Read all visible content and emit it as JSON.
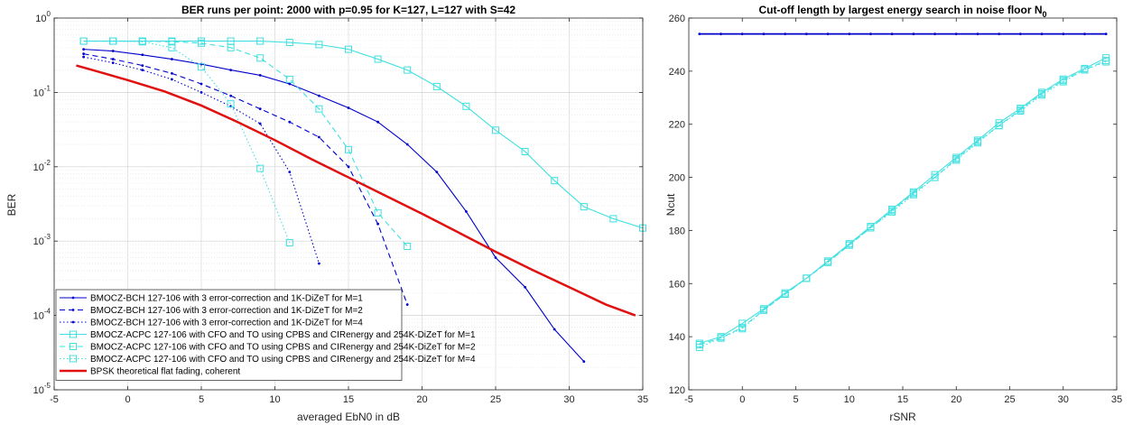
{
  "chart_data": [
    {
      "type": "line",
      "title": "BER runs per point: 2000 with p=0.95 for  K=127, L=127 with S=42",
      "xlabel": "averaged EbN0 in dB",
      "ylabel": "BER",
      "xlim": [
        -5,
        35
      ],
      "ylim": [
        1e-05,
        1
      ],
      "yscale": "log",
      "grid": true,
      "legend_position": "bottom-left",
      "xticks": [
        "-5",
        "0",
        "5",
        "10",
        "15",
        "20",
        "25",
        "30",
        "35"
      ],
      "yticks": [
        {
          "base": "10",
          "exp": "0"
        },
        {
          "base": "10",
          "exp": "-1"
        },
        {
          "base": "10",
          "exp": "-2"
        },
        {
          "base": "10",
          "exp": "-3"
        },
        {
          "base": "10",
          "exp": "-4"
        },
        {
          "base": "10",
          "exp": "-5"
        }
      ],
      "series": [
        {
          "name": "BMOCZ-BCH 127-106 with 3 error-correction and 1K-DiZeT for M=1",
          "color": "#0000cd",
          "dash": "solid",
          "marker": "dot",
          "x": [
            -3,
            -1,
            1,
            3,
            5,
            7,
            9,
            11,
            13,
            15,
            17,
            19,
            21,
            23,
            25,
            27,
            29,
            31
          ],
          "y": [
            0.38,
            0.36,
            0.32,
            0.28,
            0.24,
            0.2,
            0.17,
            0.13,
            0.09,
            0.062,
            0.04,
            0.02,
            0.0085,
            0.0025,
            0.0006,
            0.00024,
            6.5e-05,
            2.4e-05
          ]
        },
        {
          "name": "BMOCZ-BCH 127-106 with 3 error-correction and 1K-DiZeT for M=2",
          "color": "#0000cd",
          "dash": "dash",
          "marker": "dot",
          "x": [
            -3,
            -1,
            1,
            3,
            5,
            7,
            9,
            11,
            13,
            15,
            17,
            19
          ],
          "y": [
            0.33,
            0.28,
            0.23,
            0.18,
            0.13,
            0.09,
            0.06,
            0.04,
            0.025,
            0.01,
            0.0017,
            0.00014
          ]
        },
        {
          "name": "BMOCZ-BCH 127-106 with 3 error-correction and 1K-DiZeT for M=4",
          "color": "#0000cd",
          "dash": "dot",
          "marker": "dot",
          "x": [
            -3,
            -1,
            1,
            3,
            5,
            7,
            9,
            11,
            13
          ],
          "y": [
            0.3,
            0.25,
            0.2,
            0.15,
            0.1,
            0.065,
            0.038,
            0.0085,
            0.0005
          ]
        },
        {
          "name": "BMOCZ-ACPC 127-106 with CFO and TO using CPBS and CIRenergy and 254K-DiZeT for M=1",
          "color": "#40e0e0",
          "dash": "solid",
          "marker": "square",
          "x": [
            -3,
            -1,
            1,
            3,
            5,
            7,
            9,
            11,
            13,
            15,
            17,
            19,
            21,
            23,
            25,
            27,
            29,
            31,
            33,
            35
          ],
          "y": [
            0.49,
            0.49,
            0.49,
            0.49,
            0.49,
            0.49,
            0.49,
            0.47,
            0.44,
            0.38,
            0.28,
            0.2,
            0.12,
            0.065,
            0.031,
            0.016,
            0.0065,
            0.0029,
            0.002,
            0.0015
          ]
        },
        {
          "name": "BMOCZ-ACPC 127-106 with CFO and TO using CPBS and CIRenergy and 254K-DiZeT for M=2",
          "color": "#40e0e0",
          "dash": "dash",
          "marker": "square",
          "x": [
            -3,
            -1,
            1,
            3,
            5,
            7,
            9,
            11,
            13,
            15,
            17,
            19
          ],
          "y": [
            0.49,
            0.49,
            0.49,
            0.48,
            0.46,
            0.4,
            0.29,
            0.15,
            0.06,
            0.017,
            0.0024,
            0.00085
          ]
        },
        {
          "name": "BMOCZ-ACPC 127-106 with CFO and TO using CPBS and CIRenergy and 254K-DiZeT for M=4",
          "color": "#40e0e0",
          "dash": "dot",
          "marker": "square",
          "x": [
            -3,
            -1,
            1,
            3,
            5,
            7,
            9,
            11
          ],
          "y": [
            0.49,
            0.49,
            0.48,
            0.4,
            0.22,
            0.07,
            0.0095,
            0.00095
          ]
        },
        {
          "name": "BPSK theoretical flat fading, coherent",
          "color": "#e01010",
          "dash": "solid",
          "marker": "none",
          "width": 2.5,
          "x": [
            -3.5,
            -2,
            0,
            2.5,
            5,
            7.5,
            10,
            12.5,
            15,
            17.5,
            20,
            22.5,
            25,
            27.5,
            30,
            32.5,
            34.5
          ],
          "y": [
            0.23,
            0.19,
            0.146,
            0.103,
            0.0666,
            0.0397,
            0.0228,
            0.0126,
            0.0072,
            0.0041,
            0.00233,
            0.0013,
            0.00072,
            0.00041,
            0.00024,
            0.00014,
            0.0001
          ]
        }
      ]
    },
    {
      "type": "line",
      "title": "Cut-off length by largest energy search in noise floor N",
      "title_sub": "0",
      "xlabel": "rSNR",
      "ylabel": "Ncut",
      "xlim": [
        -5,
        35
      ],
      "ylim": [
        120,
        260
      ],
      "grid": false,
      "xticks": [
        "-5",
        "0",
        "5",
        "10",
        "15",
        "20",
        "25",
        "30",
        "35"
      ],
      "yticks": [
        "120",
        "140",
        "160",
        "180",
        "200",
        "220",
        "240",
        "260"
      ],
      "series": [
        {
          "color": "#0000cd",
          "dash": "solid",
          "marker": "dot",
          "width": 1.8,
          "x": [
            -4,
            -2,
            0,
            2,
            4,
            6,
            8,
            10,
            12,
            14,
            16,
            18,
            20,
            22,
            24,
            26,
            28,
            30,
            32,
            34
          ],
          "y": [
            254,
            254,
            254,
            254,
            254,
            254,
            254,
            254,
            254,
            254,
            254,
            254,
            254,
            254,
            254,
            254,
            254,
            254,
            254,
            254
          ]
        },
        {
          "color": "#40e0e0",
          "dash": "solid",
          "marker": "square",
          "x": [
            -4,
            -2,
            0,
            2,
            4,
            6,
            8,
            10,
            12,
            14,
            16,
            18,
            20,
            22,
            24,
            26,
            28,
            30,
            32,
            34
          ],
          "y": [
            137.5,
            140,
            145,
            150.5,
            156.5,
            162,
            168.5,
            175,
            181.5,
            188,
            194.5,
            201,
            207.5,
            214,
            220.5,
            226,
            232,
            237,
            241,
            245
          ]
        },
        {
          "color": "#40e0e0",
          "dash": "dash",
          "marker": "square",
          "x": [
            -4,
            -2,
            0,
            2,
            4,
            6,
            8,
            10,
            12,
            14,
            16,
            18,
            20,
            22,
            24,
            26,
            28,
            30,
            32,
            34
          ],
          "y": [
            137,
            139.5,
            143.5,
            150,
            156,
            162,
            168,
            174.5,
            181,
            187.5,
            194,
            200,
            207,
            213.5,
            219.5,
            225.5,
            231.5,
            236.5,
            240.5,
            244
          ]
        },
        {
          "color": "#40e0e0",
          "dash": "dot",
          "marker": "square",
          "x": [
            -4,
            -2,
            0,
            2,
            4,
            6,
            8,
            10,
            12,
            14,
            16,
            18,
            20,
            22,
            24,
            26,
            28,
            30,
            32,
            34
          ],
          "y": [
            136,
            139.5,
            143,
            150,
            156,
            162,
            168,
            174.5,
            181,
            187,
            193.5,
            200,
            206.5,
            213,
            219.5,
            225,
            231,
            236,
            240.5,
            243.5
          ]
        }
      ]
    }
  ]
}
